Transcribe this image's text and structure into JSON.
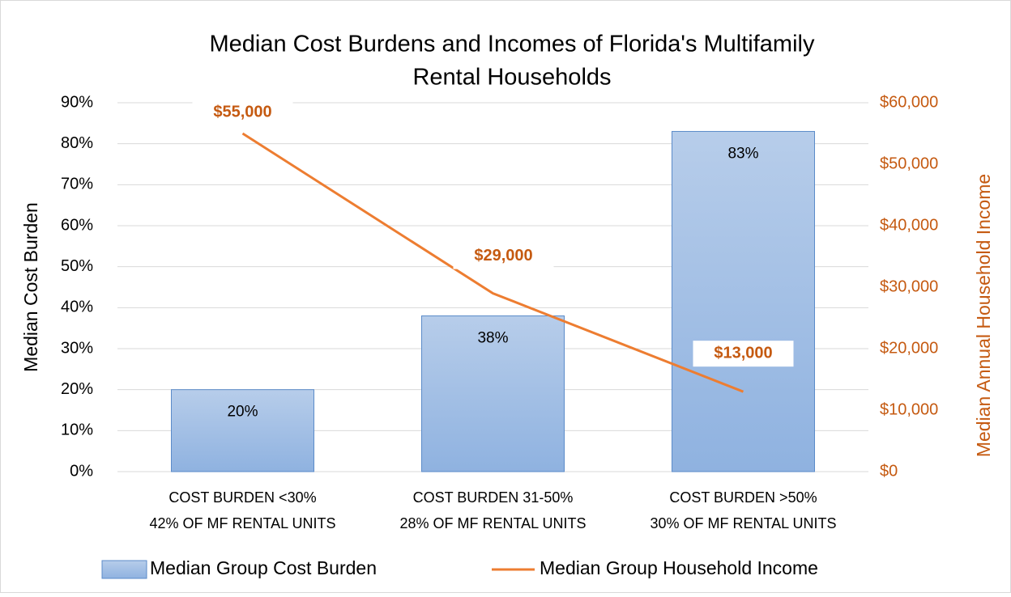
{
  "chart_data": {
    "type": "combo",
    "title": [
      "Median Cost Burdens and Incomes of Florida's Multifamily",
      "Rental Households"
    ],
    "categories": [
      [
        "COST BURDEN <30%",
        "42% OF MF RENTAL UNITS"
      ],
      [
        "COST BURDEN 31-50%",
        "28% OF MF RENTAL UNITS"
      ],
      [
        "COST BURDEN >50%",
        "30% OF MF RENTAL UNITS"
      ]
    ],
    "y_label": "Median Cost Burden",
    "y2_label": "Median Annual Household Income",
    "ylim": [
      0,
      90
    ],
    "yticks": [
      {
        "value": 0,
        "label": "0%"
      },
      {
        "value": 10,
        "label": "10%"
      },
      {
        "value": 20,
        "label": "20%"
      },
      {
        "value": 30,
        "label": "30%"
      },
      {
        "value": 40,
        "label": "40%"
      },
      {
        "value": 50,
        "label": "50%"
      },
      {
        "value": 60,
        "label": "60%"
      },
      {
        "value": 70,
        "label": "70%"
      },
      {
        "value": 80,
        "label": "80%"
      },
      {
        "value": 90,
        "label": "90%"
      }
    ],
    "y2lim": [
      0,
      60000
    ],
    "y2ticks": [
      {
        "value": 0,
        "label": "$0"
      },
      {
        "value": 10000,
        "label": "$10,000"
      },
      {
        "value": 20000,
        "label": "$20,000"
      },
      {
        "value": 30000,
        "label": "$30,000"
      },
      {
        "value": 40000,
        "label": "$40,000"
      },
      {
        "value": 50000,
        "label": "$50,000"
      },
      {
        "value": 60000,
        "label": "$60,000"
      }
    ],
    "grid": true,
    "legend": "bottom",
    "series": [
      {
        "name": "Median Group Cost Burden",
        "type": "bar",
        "color": "#9dbde6",
        "values": [
          20,
          38,
          83
        ],
        "value_labels": [
          "20%",
          "38%",
          "83%"
        ]
      },
      {
        "name": "Median Group Household Income",
        "type": "line",
        "axis": "y2",
        "color": "#ed7d31",
        "values": [
          55000,
          29000,
          13000
        ],
        "value_labels": [
          "$55,000",
          "$29,000",
          "$13,000"
        ]
      }
    ]
  }
}
